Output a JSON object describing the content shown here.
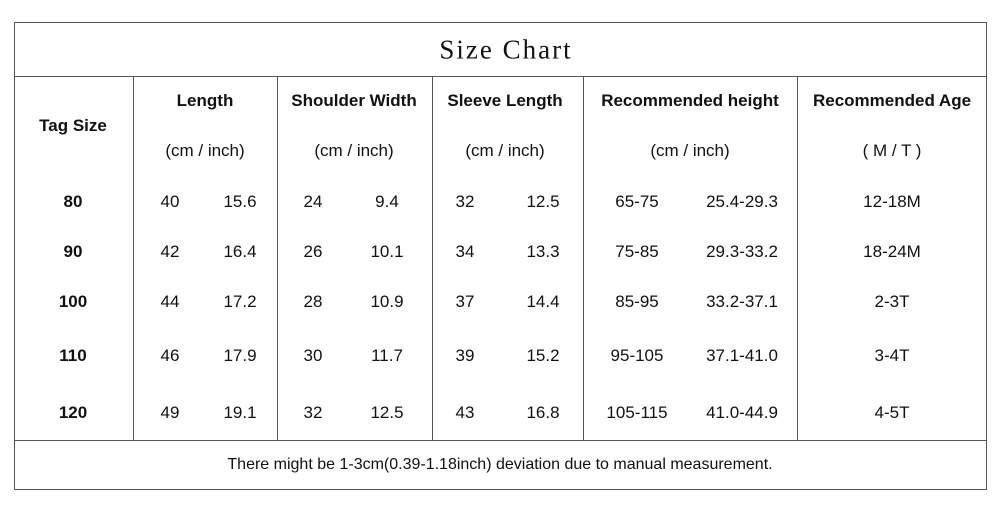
{
  "title": "Size Chart",
  "columns": [
    {
      "label": "Tag Size"
    },
    {
      "label": "Length",
      "unit": "(cm / inch)"
    },
    {
      "label": "Shoulder Width",
      "unit": "(cm / inch)"
    },
    {
      "label": "Sleeve Length",
      "unit": "(cm / inch)"
    },
    {
      "label": "Recommended height",
      "unit": "(cm / inch)"
    },
    {
      "label": "Recommended Age",
      "unit": "( M / T )"
    }
  ],
  "rows": [
    [
      "80",
      "40",
      "15.6",
      "24",
      "9.4",
      "32",
      "12.5",
      "65-75",
      "25.4-29.3",
      "12-18M"
    ],
    [
      "90",
      "42",
      "16.4",
      "26",
      "10.1",
      "34",
      "13.3",
      "75-85",
      "29.3-33.2",
      "18-24M"
    ],
    [
      "100",
      "44",
      "17.2",
      "28",
      "10.9",
      "37",
      "14.4",
      "85-95",
      "33.2-37.1",
      "2-3T"
    ],
    [
      "110",
      "46",
      "17.9",
      "30",
      "11.7",
      "39",
      "15.2",
      "95-105",
      "37.1-41.0",
      "3-4T"
    ],
    [
      "120",
      "49",
      "19.1",
      "32",
      "12.5",
      "43",
      "16.8",
      "105-115",
      "41.0-44.9",
      "4-5T"
    ]
  ],
  "footer": "There might be 1-3cm(0.39-1.18inch) deviation due to manual measurement."
}
